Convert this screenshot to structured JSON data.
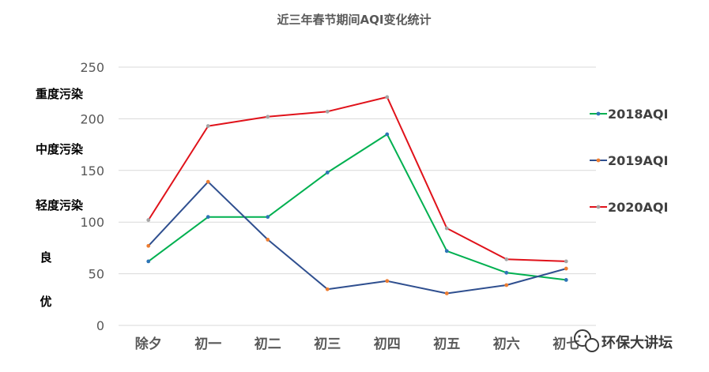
{
  "chart_data": {
    "type": "line",
    "title": "近三年春节期间AQI变化统计",
    "xlabel": "",
    "ylabel": "",
    "categories": [
      "除夕",
      "初一",
      "初二",
      "初三",
      "初四",
      "初五",
      "初六",
      "初七"
    ],
    "ylim": [
      0,
      250
    ],
    "yticks": [
      0,
      50,
      100,
      150,
      200,
      250
    ],
    "grid": true,
    "legend_position": "right",
    "series": [
      {
        "name": "2018AQI",
        "color": "#00b050",
        "marker_color": "#2e75b6",
        "values": [
          62,
          105,
          105,
          148,
          185,
          72,
          51,
          44
        ]
      },
      {
        "name": "2019AQI",
        "color": "#2f4f8f",
        "marker_color": "#ed7d31",
        "values": [
          77,
          139,
          83,
          35,
          43,
          31,
          39,
          55
        ]
      },
      {
        "name": "2020AQI",
        "color": "#e0121a",
        "marker_color": "#a5a5a5",
        "values": [
          102,
          193,
          202,
          207,
          221,
          94,
          64,
          62
        ]
      }
    ],
    "annotations": [
      "重度污染",
      "中度污染",
      "轻度污染",
      "良",
      "优"
    ]
  },
  "watermark": {
    "text": "环保大讲坛",
    "icon": "wechat-icon"
  }
}
